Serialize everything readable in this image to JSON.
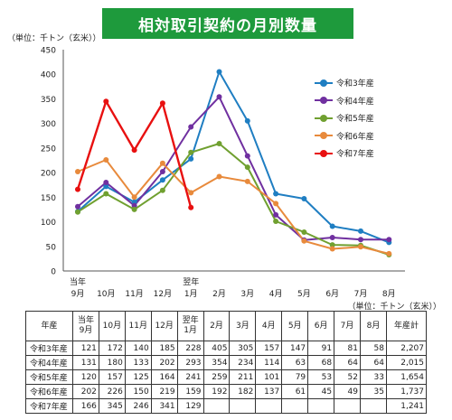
{
  "header": {
    "title": "相対取引契約の月別数量",
    "unit_chart": "（単位：千トン（玄米））",
    "unit_table": "（単位：千トン（玄米））"
  },
  "chart_data": {
    "type": "line",
    "categories": [
      "当年9月",
      "10月",
      "11月",
      "12月",
      "翌年1月",
      "2月",
      "3月",
      "4月",
      "5月",
      "6月",
      "7月",
      "8月"
    ],
    "category_labels": [
      [
        "当年",
        "9月"
      ],
      [
        "",
        "10月"
      ],
      [
        "",
        "11月"
      ],
      [
        "",
        "12月"
      ],
      [
        "翌年",
        "1月"
      ],
      [
        "",
        "2月"
      ],
      [
        "",
        "3月"
      ],
      [
        "",
        "4月"
      ],
      [
        "",
        "5月"
      ],
      [
        "",
        "6月"
      ],
      [
        "",
        "7月"
      ],
      [
        "",
        "8月"
      ]
    ],
    "ylim": [
      0,
      450
    ],
    "yticks": [
      0,
      50,
      100,
      150,
      200,
      250,
      300,
      350,
      400,
      450
    ],
    "grid": false,
    "legend_position": "right",
    "series": [
      {
        "name": "令和3年産",
        "color": "#1f7ec2",
        "values": [
          121,
          172,
          140,
          185,
          228,
          405,
          305,
          157,
          147,
          91,
          81,
          58
        ]
      },
      {
        "name": "令和4年産",
        "color": "#7030a0",
        "values": [
          131,
          180,
          133,
          202,
          293,
          354,
          234,
          114,
          63,
          68,
          64,
          64
        ]
      },
      {
        "name": "令和5年産",
        "color": "#70a030",
        "values": [
          120,
          157,
          125,
          164,
          241,
          259,
          211,
          101,
          79,
          53,
          52,
          33
        ]
      },
      {
        "name": "令和6年産",
        "color": "#e88a3c",
        "values": [
          202,
          226,
          150,
          219,
          159,
          192,
          182,
          137,
          61,
          45,
          49,
          35
        ]
      },
      {
        "name": "令和7年産",
        "color": "#e81010",
        "values": [
          166,
          345,
          246,
          341,
          129,
          null,
          null,
          null,
          null,
          null,
          null,
          null
        ]
      }
    ]
  },
  "table": {
    "corner": "年産",
    "headers": [
      "当年\n9月",
      "10月",
      "11月",
      "12月",
      "翌年\n1月",
      "2月",
      "3月",
      "4月",
      "5月",
      "6月",
      "7月",
      "8月",
      "年産計"
    ],
    "rows": [
      {
        "label": "令和3年産",
        "cells": [
          "121",
          "172",
          "140",
          "185",
          "228",
          "405",
          "305",
          "157",
          "147",
          "91",
          "81",
          "58",
          "2,207"
        ]
      },
      {
        "label": "令和4年産",
        "cells": [
          "131",
          "180",
          "133",
          "202",
          "293",
          "354",
          "234",
          "114",
          "63",
          "68",
          "64",
          "64",
          "2,015"
        ]
      },
      {
        "label": "令和5年産",
        "cells": [
          "120",
          "157",
          "125",
          "164",
          "241",
          "259",
          "211",
          "101",
          "79",
          "53",
          "52",
          "33",
          "1,654"
        ]
      },
      {
        "label": "令和6年産",
        "cells": [
          "202",
          "226",
          "150",
          "219",
          "159",
          "192",
          "182",
          "137",
          "61",
          "45",
          "49",
          "35",
          "1,737"
        ]
      },
      {
        "label": "令和7年産",
        "cells": [
          "166",
          "345",
          "246",
          "341",
          "129",
          "",
          "",
          "",
          "",
          "",
          "",
          "",
          "1,241"
        ]
      }
    ]
  }
}
